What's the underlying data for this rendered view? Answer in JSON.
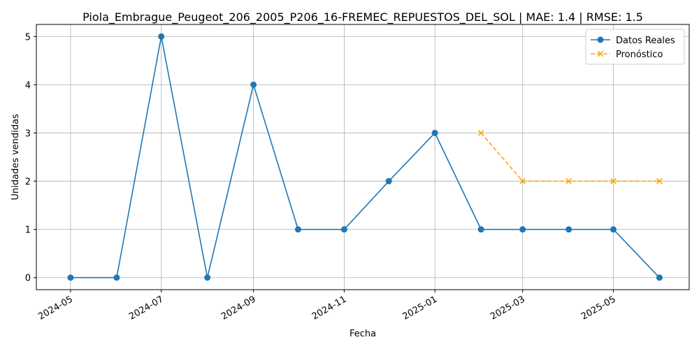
{
  "chart_data": {
    "type": "line",
    "title": "Piola_Embrague_Peugeot_206_2005_P206_16-FREMEC_REPUESTOS_DEL_SOL | MAE: 1.4 | RMSE: 1.5",
    "xlabel": "Fecha",
    "ylabel": "Unidades vendidas",
    "ylim": [
      -0.25,
      5.25
    ],
    "xlim": [
      "2024-04-08",
      "2025-06-21"
    ],
    "grid": true,
    "legend_position": "top-right",
    "x_ticks": [
      "2024-05",
      "2024-07",
      "2024-09",
      "2024-11",
      "2025-01",
      "2025-03",
      "2025-05"
    ],
    "y_ticks": [
      0,
      1,
      2,
      3,
      4,
      5
    ],
    "series": [
      {
        "name": "Datos Reales",
        "color": "#1f77b4",
        "marker": "circle",
        "line_style": "solid",
        "x": [
          "2024-05-01",
          "2024-06-01",
          "2024-07-01",
          "2024-08-01",
          "2024-09-01",
          "2024-10-01",
          "2024-11-01",
          "2024-12-01",
          "2025-01-01",
          "2025-02-01",
          "2025-03-01",
          "2025-04-01",
          "2025-05-01",
          "2025-06-01"
        ],
        "values": [
          0,
          0,
          5,
          0,
          4,
          1,
          1,
          2,
          3,
          1,
          1,
          1,
          1,
          0
        ]
      },
      {
        "name": "Pronóstico",
        "color": "#ffa500",
        "marker": "x",
        "line_style": "dashed",
        "x": [
          "2025-02-01",
          "2025-03-01",
          "2025-04-01",
          "2025-05-01",
          "2025-06-01"
        ],
        "values": [
          3,
          2,
          2,
          2,
          2
        ]
      }
    ]
  }
}
